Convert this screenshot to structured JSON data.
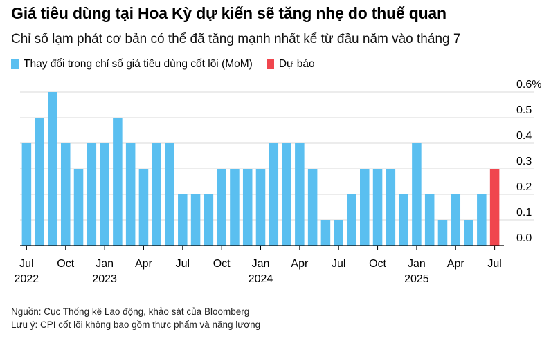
{
  "title": "Giá tiêu dùng tại Hoa Kỳ dự kiến sẽ tăng nhẹ do thuế quan",
  "subtitle": "Chỉ số lạm phát cơ bản có thể đã tăng mạnh nhất kể từ đầu năm vào tháng 7",
  "legend": {
    "actual_label": "Thay đổi trong chỉ số giá tiêu dùng cốt lõi (MoM)",
    "forecast_label": "Dự báo"
  },
  "colors": {
    "actual": "#5ABFF0",
    "forecast": "#F0464E",
    "grid": "#d9d9d9",
    "axis": "#000000"
  },
  "footer": {
    "source": "Nguồn: Cục Thống kê Lao động, khảo sát của Bloomberg",
    "note": "Lưu ý: CPI cốt lõi không bao gồm thực phẩm và năng lượng"
  },
  "chart_data": {
    "type": "bar",
    "x": [
      "2022-07",
      "2022-08",
      "2022-09",
      "2022-10",
      "2022-11",
      "2022-12",
      "2023-01",
      "2023-02",
      "2023-03",
      "2023-04",
      "2023-05",
      "2023-06",
      "2023-07",
      "2023-08",
      "2023-09",
      "2023-10",
      "2023-11",
      "2023-12",
      "2024-01",
      "2024-02",
      "2024-03",
      "2024-04",
      "2024-05",
      "2024-06",
      "2024-07",
      "2024-08",
      "2024-09",
      "2024-10",
      "2024-11",
      "2024-12",
      "2025-01",
      "2025-02",
      "2025-03",
      "2025-04",
      "2025-05",
      "2025-06",
      "2025-07"
    ],
    "series": [
      {
        "name": "Thay đổi trong chỉ số giá tiêu dùng cốt lõi (MoM)",
        "values": [
          0.4,
          0.5,
          0.6,
          0.4,
          0.3,
          0.4,
          0.4,
          0.5,
          0.4,
          0.3,
          0.4,
          0.4,
          0.2,
          0.2,
          0.2,
          0.3,
          0.3,
          0.3,
          0.3,
          0.4,
          0.4,
          0.4,
          0.3,
          0.1,
          0.1,
          0.2,
          0.3,
          0.3,
          0.3,
          0.2,
          0.4,
          0.2,
          0.1,
          0.2,
          0.1,
          0.2,
          null
        ]
      },
      {
        "name": "Dự báo",
        "values": [
          null,
          null,
          null,
          null,
          null,
          null,
          null,
          null,
          null,
          null,
          null,
          null,
          null,
          null,
          null,
          null,
          null,
          null,
          null,
          null,
          null,
          null,
          null,
          null,
          null,
          null,
          null,
          null,
          null,
          null,
          null,
          null,
          null,
          null,
          null,
          null,
          0.3
        ]
      }
    ],
    "ylim": [
      0,
      0.6
    ],
    "yticks": [
      0.0,
      0.1,
      0.2,
      0.3,
      0.4,
      0.5,
      0.6
    ],
    "ytick_labels": [
      "0.0",
      "0.1",
      "0.2",
      "0.3",
      "0.4",
      "0.5",
      "0.6%"
    ],
    "xticks": [
      {
        "x": "2022-07",
        "month": "Jul",
        "year": "2022"
      },
      {
        "x": "2022-10",
        "month": "Oct",
        "year": ""
      },
      {
        "x": "2023-01",
        "month": "Jan",
        "year": "2023"
      },
      {
        "x": "2023-04",
        "month": "Apr",
        "year": ""
      },
      {
        "x": "2023-07",
        "month": "Jul",
        "year": ""
      },
      {
        "x": "2023-10",
        "month": "Oct",
        "year": ""
      },
      {
        "x": "2024-01",
        "month": "Jan",
        "year": "2024"
      },
      {
        "x": "2024-04",
        "month": "Apr",
        "year": ""
      },
      {
        "x": "2024-07",
        "month": "Jul",
        "year": ""
      },
      {
        "x": "2024-10",
        "month": "Oct",
        "year": ""
      },
      {
        "x": "2025-01",
        "month": "Jan",
        "year": "2025"
      },
      {
        "x": "2025-04",
        "month": "Apr",
        "year": ""
      },
      {
        "x": "2025-07",
        "month": "Jul",
        "year": ""
      }
    ],
    "grid": true,
    "y_axis_position": "right",
    "legend_position": "top-left"
  }
}
